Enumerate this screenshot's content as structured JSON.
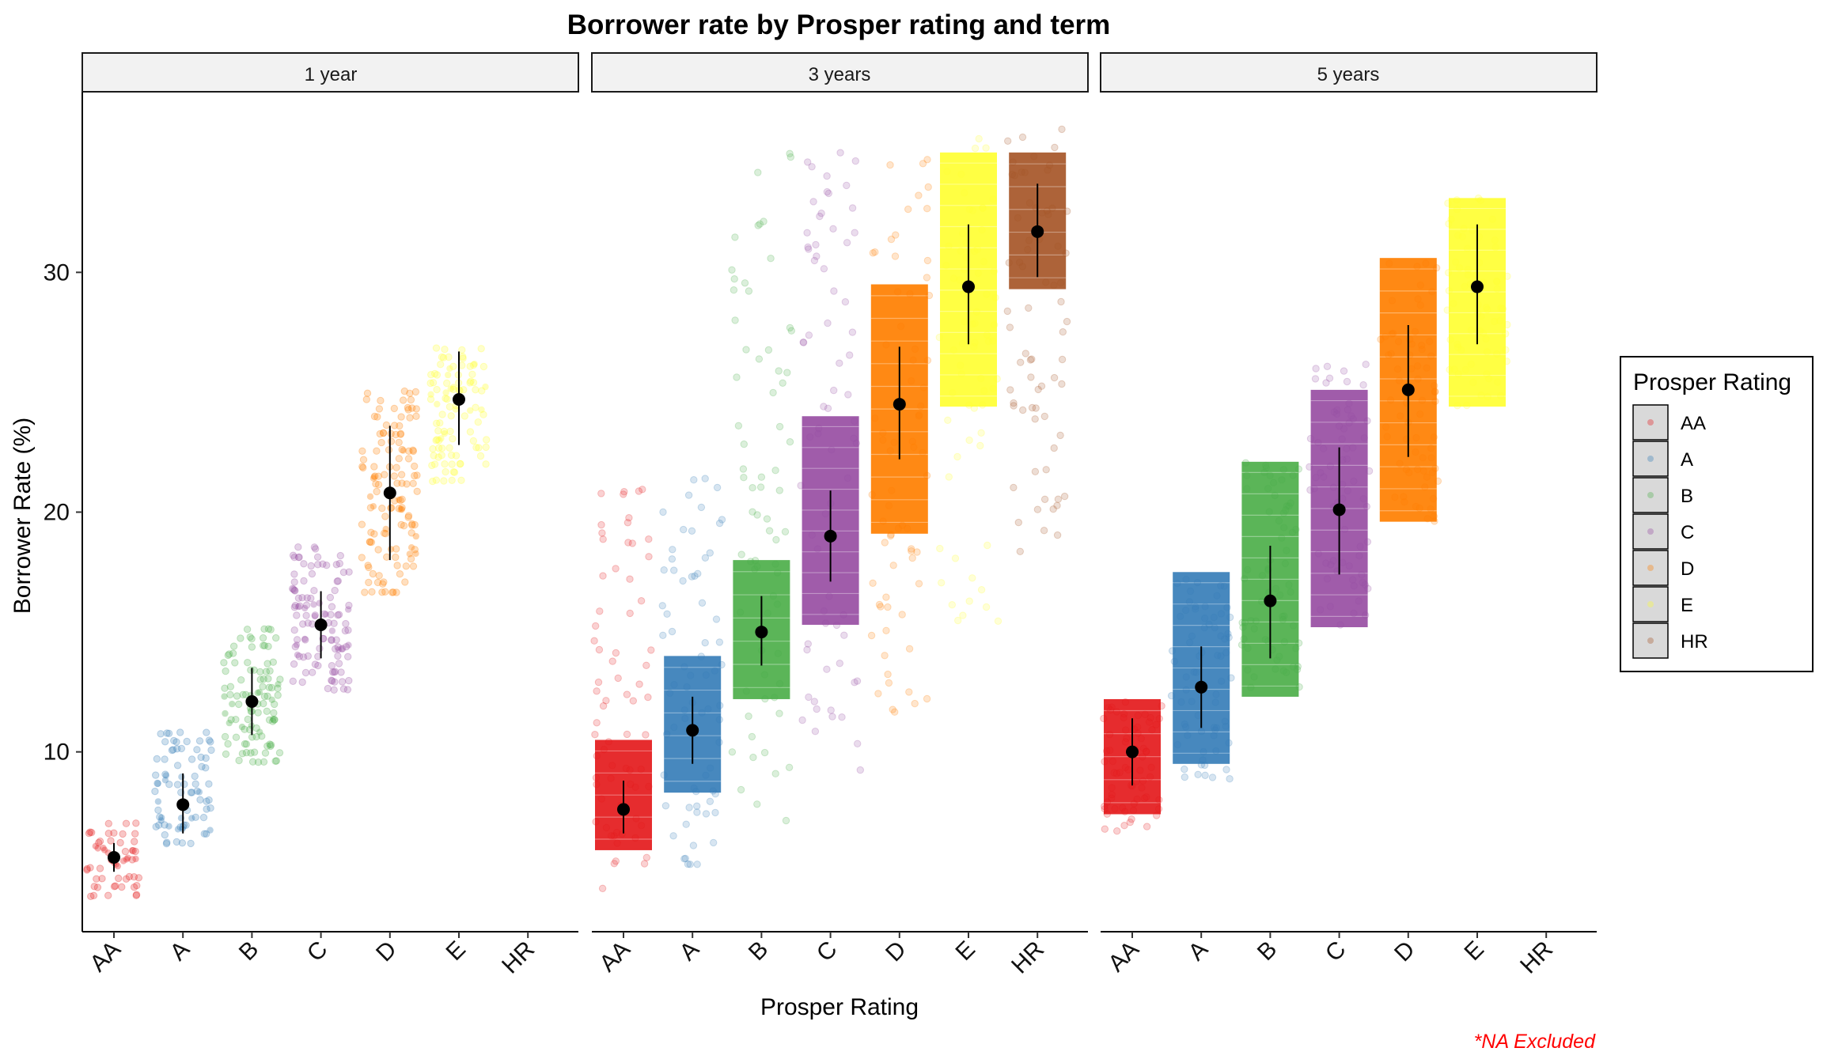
{
  "chart_data": {
    "type": "scatter",
    "subtype": "jittered strip plot with mean and ±1 SD error bars, faceted by term",
    "title": "Borrower rate by Prosper rating and term",
    "xlabel": "Prosper Rating",
    "ylabel": "Borrower Rate (%)",
    "ylim": [
      2.5,
      37.5
    ],
    "yticks": [
      10,
      20,
      30
    ],
    "grid": false,
    "categories": [
      "AA",
      "A",
      "B",
      "C",
      "D",
      "E",
      "HR"
    ],
    "legend": {
      "title": "Prosper Rating",
      "position": "right",
      "entries": [
        "AA",
        "A",
        "B",
        "C",
        "D",
        "E",
        "HR"
      ]
    },
    "colors": {
      "AA": "#e41a1c",
      "A": "#377eb8",
      "B": "#4daf4a",
      "C": "#984ea3",
      "D": "#ff7f00",
      "E": "#ffff33",
      "HR": "#a65628"
    },
    "caption": "*NA Excluded",
    "caption_color": "#ff0000",
    "facets": [
      {
        "label": "1 year",
        "summaries": [
          {
            "rating": "AA",
            "mean": 5.6,
            "sd_low": 5.0,
            "sd_high": 6.2,
            "range": [
              4.0,
              7.0
            ],
            "band": [
              5.0,
              6.5
            ],
            "density": "sparse"
          },
          {
            "rating": "A",
            "mean": 7.8,
            "sd_low": 6.6,
            "sd_high": 9.1,
            "range": [
              6.2,
              10.8
            ],
            "band": [
              6.2,
              10.8
            ],
            "density": "sparse"
          },
          {
            "rating": "B",
            "mean": 12.1,
            "sd_low": 10.7,
            "sd_high": 13.5,
            "range": [
              9.6,
              15.1
            ],
            "band": [
              9.6,
              15.1
            ],
            "density": "sparse"
          },
          {
            "rating": "C",
            "mean": 15.3,
            "sd_low": 13.9,
            "sd_high": 16.7,
            "range": [
              12.6,
              18.5
            ],
            "band": [
              12.6,
              18.5
            ],
            "density": "sparse"
          },
          {
            "rating": "D",
            "mean": 20.8,
            "sd_low": 18.0,
            "sd_high": 23.6,
            "range": [
              16.7,
              25.0
            ],
            "band": [
              16.7,
              25.0
            ],
            "density": "sparse"
          },
          {
            "rating": "E",
            "mean": 24.7,
            "sd_low": 22.8,
            "sd_high": 26.7,
            "range": [
              21.3,
              26.8
            ],
            "band": [
              21.3,
              26.8
            ],
            "density": "sparse"
          },
          {
            "rating": "HR",
            "mean": null,
            "sd_low": null,
            "sd_high": null,
            "range": null,
            "band": null,
            "density": "none"
          }
        ]
      },
      {
        "label": "3 years",
        "summaries": [
          {
            "rating": "AA",
            "mean": 7.6,
            "sd_low": 6.6,
            "sd_high": 8.8,
            "range": [
              4.2,
              21.0
            ],
            "band": [
              5.9,
              10.5
            ],
            "density": "dense"
          },
          {
            "rating": "A",
            "mean": 10.9,
            "sd_low": 9.5,
            "sd_high": 12.3,
            "range": [
              4.9,
              21.6
            ],
            "band": [
              8.3,
              14.0
            ],
            "density": "dense"
          },
          {
            "rating": "B",
            "mean": 15.0,
            "sd_low": 13.6,
            "sd_high": 16.5,
            "range": [
              7.0,
              35.0
            ],
            "band": [
              12.2,
              18.0
            ],
            "density": "dense"
          },
          {
            "rating": "C",
            "mean": 19.0,
            "sd_low": 17.1,
            "sd_high": 20.9,
            "range": [
              8.9,
              35.0
            ],
            "band": [
              15.3,
              24.0
            ],
            "density": "dense"
          },
          {
            "rating": "D",
            "mean": 24.5,
            "sd_low": 22.2,
            "sd_high": 26.9,
            "range": [
              11.5,
              35.0
            ],
            "band": [
              19.1,
              29.5
            ],
            "density": "dense"
          },
          {
            "rating": "E",
            "mean": 29.4,
            "sd_low": 27.0,
            "sd_high": 32.0,
            "range": [
              15.2,
              35.9
            ],
            "band": [
              24.4,
              35.0
            ],
            "density": "dense"
          },
          {
            "rating": "HR",
            "mean": 31.7,
            "sd_low": 29.8,
            "sd_high": 33.7,
            "range": [
              17.9,
              36.0
            ],
            "band": [
              29.3,
              35.0
            ],
            "density": "dense"
          }
        ]
      },
      {
        "label": "5 years",
        "summaries": [
          {
            "rating": "AA",
            "mean": 10.0,
            "sd_low": 8.6,
            "sd_high": 11.4,
            "range": [
              6.7,
              12.2
            ],
            "band": [
              7.4,
              12.2
            ],
            "density": "dense"
          },
          {
            "rating": "A",
            "mean": 12.7,
            "sd_low": 11.0,
            "sd_high": 14.4,
            "range": [
              8.8,
              17.5
            ],
            "band": [
              9.5,
              17.5
            ],
            "density": "dense"
          },
          {
            "rating": "B",
            "mean": 16.3,
            "sd_low": 13.9,
            "sd_high": 18.6,
            "range": [
              12.3,
              22.1
            ],
            "band": [
              12.3,
              22.1
            ],
            "density": "dense"
          },
          {
            "rating": "C",
            "mean": 20.1,
            "sd_low": 17.4,
            "sd_high": 22.7,
            "range": [
              15.2,
              26.2
            ],
            "band": [
              15.2,
              25.1
            ],
            "density": "dense"
          },
          {
            "rating": "D",
            "mean": 25.1,
            "sd_low": 22.3,
            "sd_high": 27.8,
            "range": [
              19.6,
              30.6
            ],
            "band": [
              19.6,
              30.6
            ],
            "density": "dense"
          },
          {
            "rating": "E",
            "mean": 29.4,
            "sd_low": 27.0,
            "sd_high": 32.0,
            "range": [
              24.2,
              33.1
            ],
            "band": [
              24.4,
              33.1
            ],
            "density": "dense"
          },
          {
            "rating": "HR",
            "mean": null,
            "sd_low": null,
            "sd_high": null,
            "range": null,
            "band": null,
            "density": "none"
          }
        ]
      }
    ]
  }
}
